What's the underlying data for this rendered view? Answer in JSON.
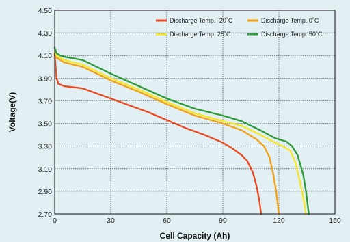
{
  "chart_data": {
    "type": "line",
    "xlabel": "Cell Capacity (Ah)",
    "ylabel": "Voltage(V)",
    "xlim": [
      0,
      150
    ],
    "ylim": [
      2.7,
      4.5
    ],
    "xticks": [
      0,
      30,
      60,
      90,
      120,
      150
    ],
    "yticks": [
      "2.70",
      "2.90",
      "3.10",
      "3.30",
      "3.50",
      "3.70",
      "3.90",
      "4.10",
      "4.30",
      "4.50"
    ],
    "grid": true,
    "legend_position": "top-right",
    "series": [
      {
        "name": "Discharge Temp. -20˚C",
        "color": "#e74c24",
        "points": [
          [
            0,
            4.12
          ],
          [
            0.5,
            4.0
          ],
          [
            1,
            3.9
          ],
          [
            2,
            3.85
          ],
          [
            5,
            3.83
          ],
          [
            10,
            3.82
          ],
          [
            15,
            3.81
          ],
          [
            20,
            3.78
          ],
          [
            30,
            3.72
          ],
          [
            40,
            3.66
          ],
          [
            50,
            3.6
          ],
          [
            60,
            3.53
          ],
          [
            70,
            3.46
          ],
          [
            80,
            3.4
          ],
          [
            90,
            3.33
          ],
          [
            95,
            3.28
          ],
          [
            100,
            3.22
          ],
          [
            103,
            3.17
          ],
          [
            106,
            3.07
          ],
          [
            108,
            2.95
          ],
          [
            109.5,
            2.82
          ],
          [
            110.5,
            2.7
          ]
        ]
      },
      {
        "name": "Discharge Temp. 0˚C",
        "color": "#f0a21a",
        "points": [
          [
            0,
            4.12
          ],
          [
            1,
            4.08
          ],
          [
            3,
            4.06
          ],
          [
            5,
            4.04
          ],
          [
            15,
            4.0
          ],
          [
            30,
            3.88
          ],
          [
            45,
            3.78
          ],
          [
            60,
            3.67
          ],
          [
            75,
            3.57
          ],
          [
            90,
            3.5
          ],
          [
            100,
            3.44
          ],
          [
            108,
            3.36
          ],
          [
            112,
            3.3
          ],
          [
            115,
            3.2
          ],
          [
            117,
            3.05
          ],
          [
            118.5,
            2.9
          ],
          [
            119.5,
            2.77
          ],
          [
            120,
            2.7
          ]
        ]
      },
      {
        "name": "Discharge Temp. 25˚C",
        "color": "#f6e62a",
        "points": [
          [
            0,
            4.14
          ],
          [
            1,
            4.1
          ],
          [
            3,
            4.08
          ],
          [
            5,
            4.06
          ],
          [
            15,
            4.02
          ],
          [
            30,
            3.9
          ],
          [
            45,
            3.8
          ],
          [
            60,
            3.69
          ],
          [
            75,
            3.59
          ],
          [
            90,
            3.52
          ],
          [
            100,
            3.48
          ],
          [
            110,
            3.4
          ],
          [
            118,
            3.33
          ],
          [
            123,
            3.29
          ],
          [
            126,
            3.26
          ],
          [
            129,
            3.15
          ],
          [
            131,
            3.0
          ],
          [
            133,
            2.85
          ],
          [
            134.5,
            2.7
          ]
        ]
      },
      {
        "name": "Discharge Temp. 50˚C",
        "color": "#2e9a3c",
        "points": [
          [
            0,
            4.17
          ],
          [
            1,
            4.12
          ],
          [
            3,
            4.1
          ],
          [
            5,
            4.09
          ],
          [
            15,
            4.06
          ],
          [
            30,
            3.94
          ],
          [
            45,
            3.83
          ],
          [
            60,
            3.72
          ],
          [
            75,
            3.63
          ],
          [
            90,
            3.57
          ],
          [
            100,
            3.52
          ],
          [
            110,
            3.44
          ],
          [
            118,
            3.37
          ],
          [
            124,
            3.34
          ],
          [
            127,
            3.3
          ],
          [
            130,
            3.22
          ],
          [
            133,
            3.05
          ],
          [
            134.5,
            2.9
          ],
          [
            136,
            2.7
          ]
        ]
      }
    ]
  }
}
